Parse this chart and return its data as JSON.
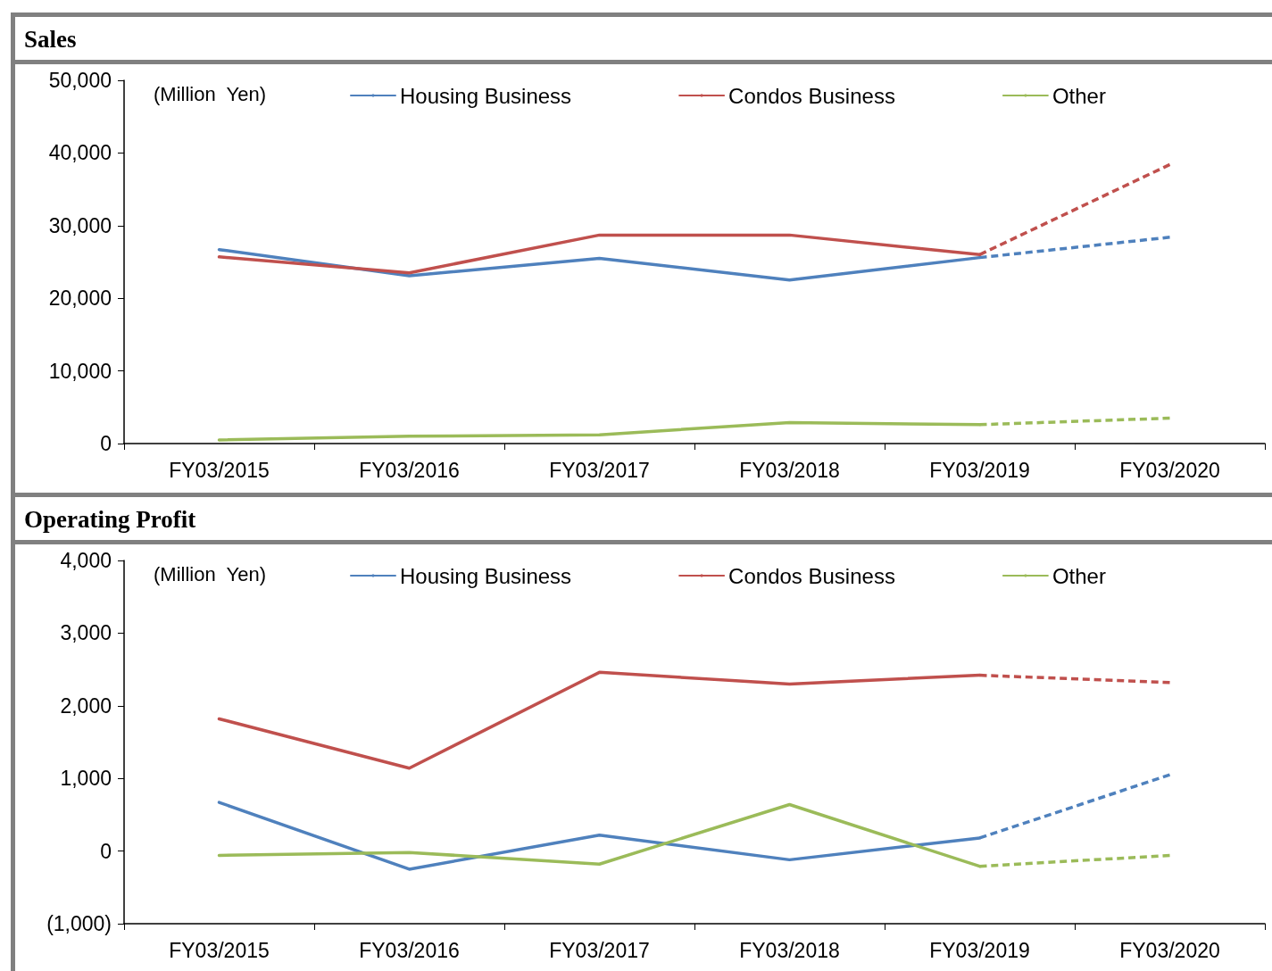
{
  "chart_data": [
    {
      "type": "line",
      "title": "Sales",
      "annotations": [
        "(Million  Yen)"
      ],
      "categories": [
        "FY03/2015",
        "FY03/2016",
        "FY03/2017",
        "FY03/2018",
        "FY03/2019",
        "FY03/2020"
      ],
      "ylim": [
        0,
        50000
      ],
      "yticks": [
        {
          "value": 0,
          "label": "0"
        },
        {
          "value": 10000,
          "label": "10,000"
        },
        {
          "value": 20000,
          "label": "20,000"
        },
        {
          "value": 30000,
          "label": "30,000"
        },
        {
          "value": 40000,
          "label": "40,000"
        },
        {
          "value": 50000,
          "label": "50,000"
        }
      ],
      "grid": false,
      "legend": "top",
      "marker": "none",
      "series": [
        {
          "name": "Housing Business",
          "color": "#4f81bd",
          "line_style": "solid",
          "values": [
            26700,
            23100,
            25500,
            22500,
            25600,
            null
          ]
        },
        {
          "name": "Condos Business",
          "color": "#c0504d",
          "line_style": "solid",
          "values": [
            25700,
            23500,
            28700,
            28700,
            26000,
            null
          ]
        },
        {
          "color": "#9bbb59",
          "line_style": "dashed",
          "values": [
            null,
            null,
            null,
            null,
            2600,
            3500
          ]
        },
        {
          "name": "Other",
          "color": "#9bbb59",
          "line_style": "solid",
          "values": [
            500,
            1000,
            1200,
            2900,
            2600,
            null
          ]
        },
        {
          "color": "#4f81bd",
          "line_style": "dashed",
          "values": [
            null,
            null,
            null,
            null,
            25600,
            28400
          ]
        },
        {
          "color": "#c0504d",
          "line_style": "dashed",
          "values": [
            null,
            null,
            null,
            null,
            26000,
            38400
          ]
        }
      ]
    },
    {
      "type": "line",
      "title": "Operating Profit",
      "annotations": [
        "(Million  Yen)"
      ],
      "categories": [
        "FY03/2015",
        "FY03/2016",
        "FY03/2017",
        "FY03/2018",
        "FY03/2019",
        "FY03/2020"
      ],
      "ylim": [
        -1000,
        4000
      ],
      "yticks": [
        {
          "value": -1000,
          "label": "(1,000)"
        },
        {
          "value": 0,
          "label": "0"
        },
        {
          "value": 1000,
          "label": "1,000"
        },
        {
          "value": 2000,
          "label": "2,000"
        },
        {
          "value": 3000,
          "label": "3,000"
        },
        {
          "value": 4000,
          "label": "4,000"
        }
      ],
      "grid": false,
      "legend": "top",
      "marker": "none",
      "series": [
        {
          "name": "Housing Business",
          "color": "#4f81bd",
          "line_style": "solid",
          "values": [
            670,
            -250,
            220,
            -120,
            180,
            null
          ]
        },
        {
          "name": "Condos Business",
          "color": "#c0504d",
          "line_style": "solid",
          "values": [
            1820,
            1140,
            2460,
            2300,
            2420,
            null
          ]
        },
        {
          "color": "#9bbb59",
          "line_style": "dashed",
          "values": [
            null,
            null,
            null,
            null,
            -210,
            -60
          ]
        },
        {
          "name": "Other",
          "color": "#9bbb59",
          "line_style": "solid",
          "values": [
            -60,
            -20,
            -180,
            640,
            -210,
            null
          ]
        },
        {
          "color": "#4f81bd",
          "line_style": "dashed",
          "values": [
            null,
            null,
            null,
            null,
            180,
            1050
          ]
        },
        {
          "color": "#c0504d",
          "line_style": "dashed",
          "values": [
            null,
            null,
            null,
            null,
            2420,
            2320
          ]
        }
      ]
    }
  ]
}
